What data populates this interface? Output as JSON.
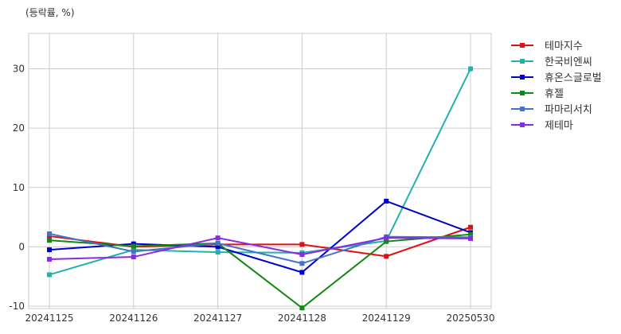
{
  "chart_data": {
    "type": "line",
    "title": "",
    "ylabel": "(등락률, %)",
    "xlabel": "",
    "categories": [
      "20241125",
      "20241126",
      "20241127",
      "20241128",
      "20241129",
      "20250530"
    ],
    "ylim": [
      -10,
      36
    ],
    "yticks": [
      -10,
      0,
      10,
      20,
      30
    ],
    "grid": true,
    "legend_position": "right",
    "series": [
      {
        "name": "테마지수",
        "color": "#dd1111",
        "values": [
          1.8,
          0.0,
          0.4,
          0.4,
          -1.6,
          3.3
        ]
      },
      {
        "name": "한국비엔씨",
        "color": "#22b2aa",
        "values": [
          -4.7,
          -0.5,
          -0.9,
          -1.0,
          1.0,
          30.0
        ]
      },
      {
        "name": "휴온스글로벌",
        "color": "#0000cc",
        "values": [
          -0.5,
          0.5,
          0.0,
          -4.3,
          7.7,
          2.4
        ]
      },
      {
        "name": "휴젤",
        "color": "#118811",
        "values": [
          1.1,
          0.1,
          0.6,
          -10.3,
          0.9,
          2.1
        ]
      },
      {
        "name": "파마리서치",
        "color": "#4472c4",
        "values": [
          2.2,
          -0.8,
          0.6,
          -2.8,
          1.7,
          1.6
        ]
      },
      {
        "name": "제테마",
        "color": "#8a2be2",
        "values": [
          -2.1,
          -1.7,
          1.5,
          -1.3,
          1.5,
          1.4
        ]
      }
    ]
  }
}
